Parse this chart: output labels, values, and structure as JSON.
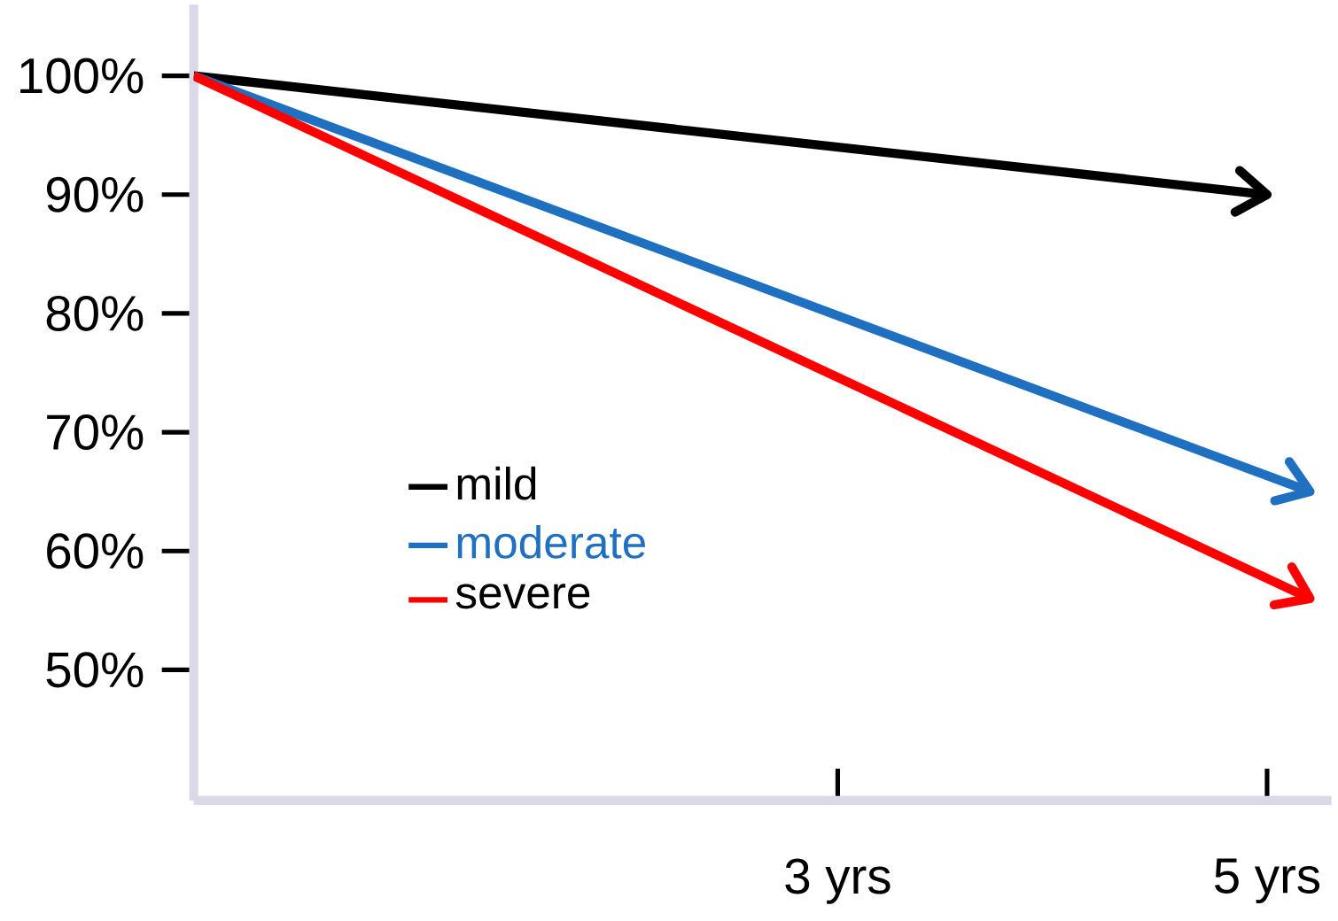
{
  "chart_data": {
    "type": "line",
    "xlim": [
      0,
      5.3
    ],
    "ylim": [
      39,
      106
    ],
    "xticks": [
      {
        "value": 3,
        "label": "3 yrs"
      },
      {
        "value": 5,
        "label": "5 yrs"
      }
    ],
    "yticks": [
      {
        "value": 50,
        "label": "50%"
      },
      {
        "value": 60,
        "label": "60%"
      },
      {
        "value": 70,
        "label": "70%"
      },
      {
        "value": 80,
        "label": "80%"
      },
      {
        "value": 90,
        "label": "90%"
      },
      {
        "value": 100,
        "label": "100%"
      }
    ],
    "legend": "center",
    "marker": "none",
    "line_style": "solid",
    "grid": false,
    "series": [
      {
        "name": "mild",
        "color": "#000000",
        "x": [
          0,
          5
        ],
        "values": [
          100,
          90
        ]
      },
      {
        "name": "moderate",
        "color": "#1f70c1",
        "x": [
          0,
          5.2
        ],
        "values": [
          100,
          65
        ]
      },
      {
        "name": "severe",
        "color": "#ff0000",
        "x": [
          0,
          5.2
        ],
        "values": [
          100,
          56
        ]
      }
    ]
  }
}
